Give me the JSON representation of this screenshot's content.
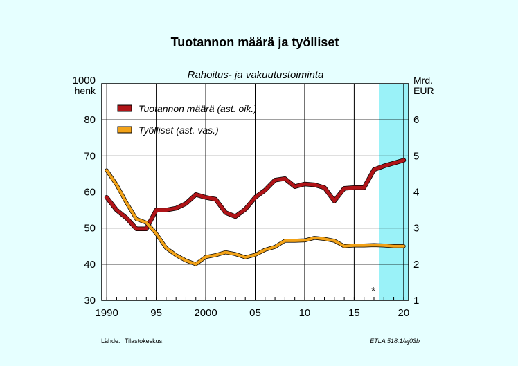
{
  "title": "Tuotannon määrä ja työlliset",
  "subtitle": "Rahoitus- ja vakuutustoiminta",
  "source_label": "Lähde:",
  "source_value": "Tilastokeskus.",
  "code": "ETLA 518.1/aj03b",
  "forecast_marker": "*",
  "colors": {
    "background": "#e6ffff",
    "plot_bg": "#ffffff",
    "forecast_band": "#9af2f8",
    "production_line": "#b01418",
    "employment_line": "#f2a218",
    "line_outline": "#000000"
  },
  "chart_data": {
    "type": "line",
    "grid": true,
    "legend_position": "top-left",
    "forecast_start_year": 2017.5,
    "x": [
      1990,
      1991,
      1992,
      1993,
      1994,
      1995,
      1996,
      1997,
      1998,
      1999,
      2000,
      2001,
      2002,
      2003,
      2004,
      2005,
      2006,
      2007,
      2008,
      2009,
      2010,
      2011,
      2012,
      2013,
      2014,
      2015,
      2016,
      2017,
      2018,
      2019,
      2020
    ],
    "xlim": [
      1989.5,
      2020.5
    ],
    "x_ticks": [
      1990,
      1995,
      2000,
      2005,
      2010,
      2015,
      2020
    ],
    "x_tick_labels": [
      "1990",
      "95",
      "2000",
      "05",
      "10",
      "15",
      "20"
    ],
    "left_axis": {
      "unit_line1": "1000",
      "unit_line2": "henk",
      "ylim": [
        30,
        90
      ],
      "ticks": [
        30,
        40,
        50,
        60,
        70,
        80
      ],
      "tick_labels": [
        "30",
        "40",
        "50",
        "60",
        "70",
        "80"
      ]
    },
    "right_axis": {
      "unit_line1": "Mrd.",
      "unit_line2": "EUR",
      "ylim": [
        1,
        7
      ],
      "ticks": [
        1,
        2,
        3,
        4,
        5,
        6
      ],
      "tick_labels": [
        "1",
        "2",
        "3",
        "4",
        "5",
        "6"
      ]
    },
    "series": [
      {
        "name": "Tuotannon määrä (ast. oik.)",
        "axis": "right",
        "values": [
          3.85,
          3.5,
          3.28,
          2.98,
          2.98,
          3.5,
          3.5,
          3.55,
          3.68,
          3.93,
          3.85,
          3.8,
          3.43,
          3.32,
          3.52,
          3.85,
          4.05,
          4.33,
          4.37,
          4.15,
          4.22,
          4.2,
          4.12,
          3.75,
          4.1,
          4.12,
          4.12,
          4.62,
          4.72,
          4.8,
          4.88
        ]
      },
      {
        "name": "Työlliset (ast. vas.)",
        "axis": "left",
        "values": [
          66,
          62,
          57,
          52.5,
          51.5,
          48.5,
          44.5,
          42.5,
          41,
          40,
          42,
          42.5,
          43.3,
          42.8,
          41.9,
          42.6,
          44,
          44.8,
          46.5,
          46.5,
          46.6,
          47.3,
          47,
          46.5,
          45,
          45.2,
          45.2,
          45.3,
          45.2,
          45,
          45
        ]
      }
    ]
  }
}
